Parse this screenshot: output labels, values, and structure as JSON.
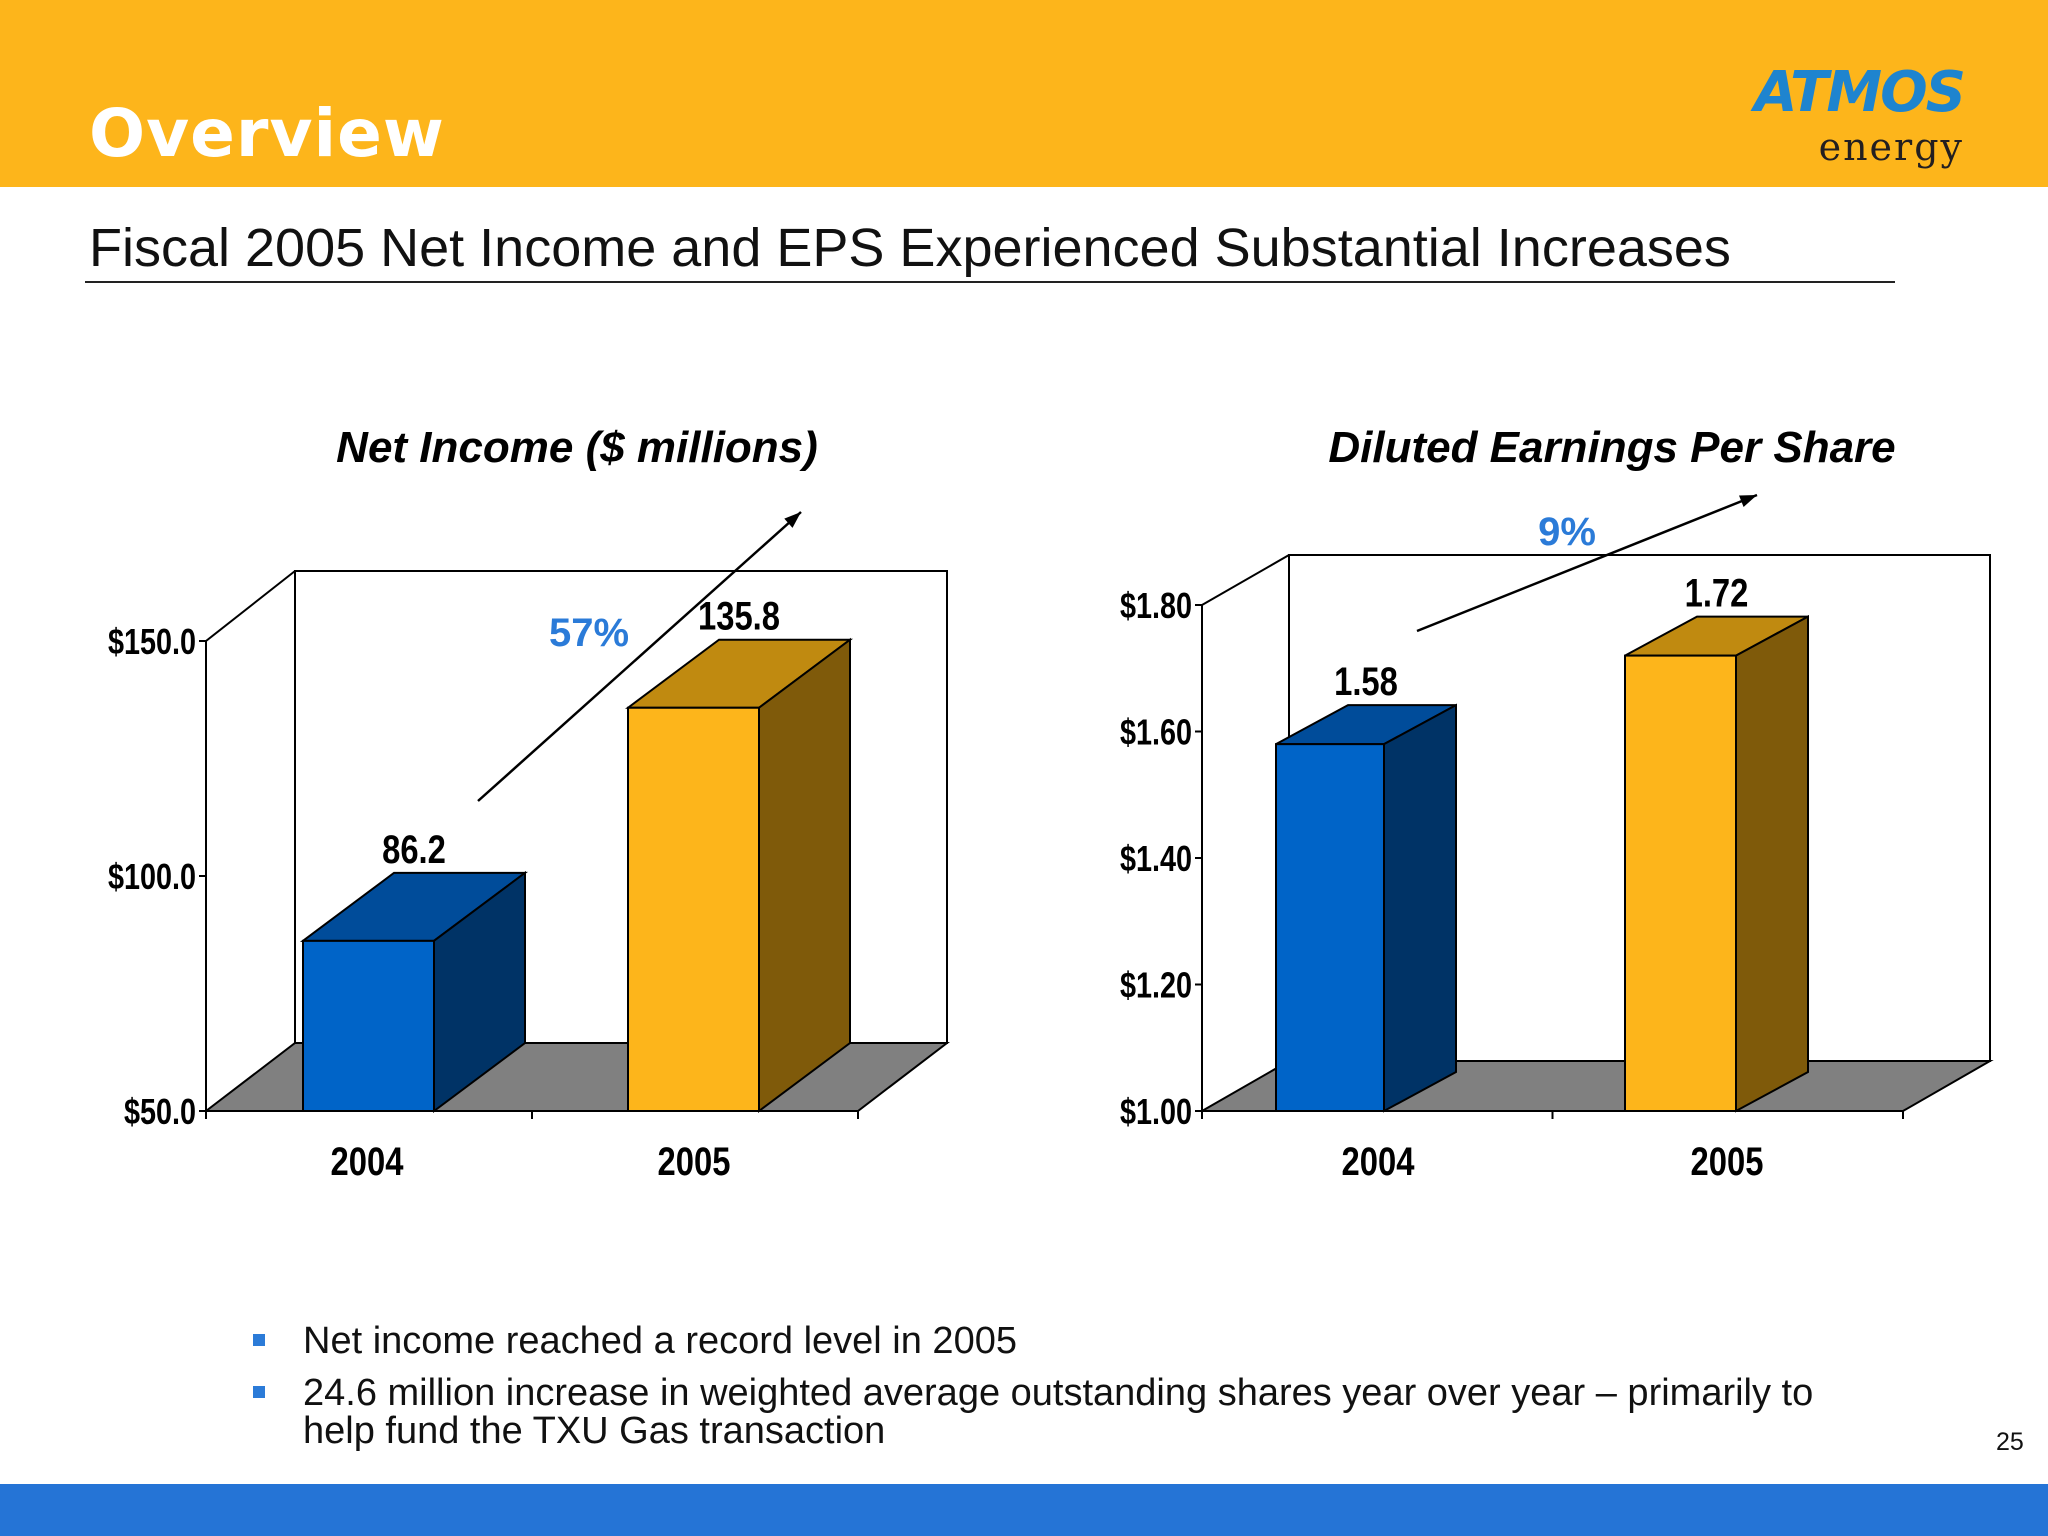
{
  "header": {
    "title": "Overview",
    "logo_main": "ATMOS",
    "logo_sub": "energy"
  },
  "subtitle": "Fiscal 2005 Net Income and EPS Experienced Substantial Increases",
  "colors": {
    "header": "#fdb51b",
    "footer": "#2574d6",
    "bar_2004": "#0064c8",
    "bar_2005": "#fdb51b",
    "growth_label": "#2b7bd8"
  },
  "chart_data": [
    {
      "type": "bar",
      "title": "Net Income ($ millions)",
      "categories": [
        "2004",
        "2005"
      ],
      "values": [
        86.2,
        135.8
      ],
      "value_labels": [
        "86.2",
        "135.8"
      ],
      "yticks": [
        "$50.0",
        "$100.0",
        "$150.0"
      ],
      "ytick_values": [
        50,
        100,
        150
      ],
      "ylim": [
        50,
        150
      ],
      "growth_label": "57%",
      "xlabel": "",
      "ylabel": ""
    },
    {
      "type": "bar",
      "title": "Diluted Earnings Per Share",
      "categories": [
        "2004",
        "2005"
      ],
      "values": [
        1.58,
        1.72
      ],
      "value_labels": [
        "1.58",
        "1.72"
      ],
      "yticks": [
        "$1.00",
        "$1.20",
        "$1.40",
        "$1.60",
        "$1.80"
      ],
      "ytick_values": [
        1.0,
        1.2,
        1.4,
        1.6,
        1.8
      ],
      "ylim": [
        1.0,
        1.8
      ],
      "growth_label": "9%",
      "xlabel": "",
      "ylabel": ""
    }
  ],
  "bullets": [
    "Net income reached a record level in 2005",
    "24.6 million increase in weighted average outstanding shares year over year – primarily to help fund the TXU Gas transaction"
  ],
  "page_number": "25"
}
